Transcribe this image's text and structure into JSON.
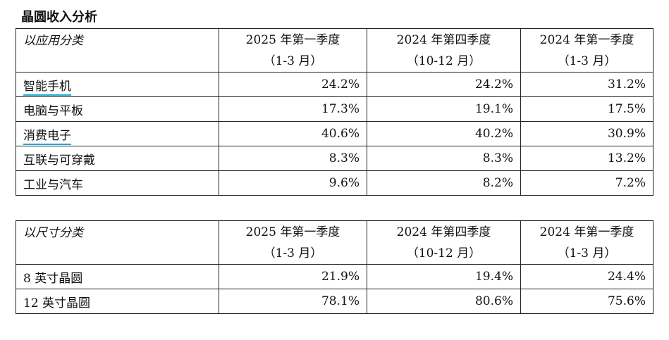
{
  "title": "晶圆收入分析",
  "tables": [
    {
      "header": [
        "以应用分类",
        {
          "quarter": "2025 年第一季度",
          "period": "（1-3 月）"
        },
        {
          "quarter": "2024 年第四季度",
          "period": "（10-12 月）"
        },
        {
          "quarter": "2024 年第一季度",
          "period": "（1-3 月）"
        }
      ],
      "rows": [
        [
          "智能手机",
          "24.2%",
          "24.2%",
          "31.2%"
        ],
        [
          "电脑与平板",
          "17.3%",
          "19.1%",
          "17.5%"
        ],
        [
          "消费电子",
          "40.6%",
          "40.2%",
          "30.9%"
        ],
        [
          "互联与可穿戴",
          "8.3%",
          "8.3%",
          "13.2%"
        ],
        [
          "工业与汽车",
          "9.6%",
          "8.2%",
          "7.2%"
        ]
      ]
    },
    {
      "header": [
        "以尺寸分类",
        {
          "quarter": "2025 年第一季度",
          "period": "（1-3 月）"
        },
        {
          "quarter": "2024 年第四季度",
          "period": "（10-12 月）"
        },
        {
          "quarter": "2024 年第一季度",
          "period": "（1-3 月）"
        }
      ],
      "rows": [
        [
          "8 英寸晶圆",
          "21.9%",
          "19.4%",
          "24.4%"
        ],
        [
          "12 英寸晶圆",
          "78.1%",
          "80.6%",
          "75.6%"
        ]
      ]
    }
  ]
}
